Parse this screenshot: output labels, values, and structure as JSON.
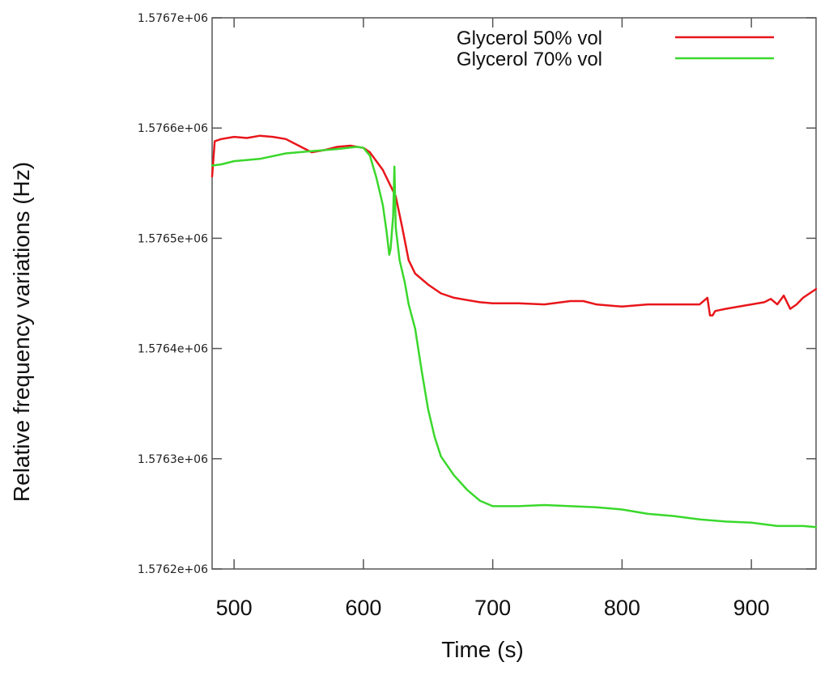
{
  "chart_data": {
    "type": "line",
    "title": "",
    "xlabel": "Time (s)",
    "ylabel": "Relative frequency variations (Hz)",
    "xlim": [
      483,
      950
    ],
    "ylim": [
      1576200,
      1576700
    ],
    "xticks": [
      500,
      600,
      700,
      800,
      900
    ],
    "xtick_labels": [
      "500",
      "600",
      "700",
      "800",
      "900"
    ],
    "yticks": [
      1576200,
      1576300,
      1576400,
      1576500,
      1576600,
      1576700
    ],
    "ytick_labels": [
      "1.5762e+06",
      "1.5763e+06",
      "1.5764e+06",
      "1.5765e+06",
      "1.5766e+06",
      "1.5767e+06"
    ],
    "grid": false,
    "legend": "top-right",
    "series": [
      {
        "name": "Glycerol 50% vol",
        "color": "#e8161b",
        "x": [
          483,
          485,
          490,
          500,
          510,
          520,
          530,
          540,
          550,
          560,
          570,
          580,
          590,
          600,
          605,
          610,
          615,
          620,
          625,
          630,
          635,
          640,
          650,
          660,
          670,
          680,
          690,
          700,
          720,
          740,
          760,
          770,
          780,
          800,
          820,
          840,
          860,
          866,
          868,
          870,
          872,
          880,
          900,
          910,
          915,
          920,
          925,
          930,
          935,
          940,
          950
        ],
        "y": [
          1576556,
          1576588,
          1576590,
          1576592,
          1576591,
          1576593,
          1576592,
          1576590,
          1576584,
          1576578,
          1576580,
          1576583,
          1576584,
          1576582,
          1576578,
          1576570,
          1576562,
          1576550,
          1576538,
          1576510,
          1576480,
          1576468,
          1576458,
          1576450,
          1576446,
          1576444,
          1576442,
          1576441,
          1576441,
          1576440,
          1576443,
          1576443,
          1576440,
          1576438,
          1576440,
          1576440,
          1576440,
          1576446,
          1576430,
          1576430,
          1576434,
          1576436,
          1576440,
          1576442,
          1576445,
          1576440,
          1576448,
          1576436,
          1576440,
          1576446,
          1576454
        ]
      },
      {
        "name": "Glycerol 70% vol",
        "color": "#3ad82c",
        "x": [
          483,
          490,
          500,
          520,
          540,
          560,
          580,
          595,
          600,
          605,
          610,
          615,
          618,
          620,
          621,
          623,
          624,
          625,
          628,
          632,
          635,
          640,
          645,
          650,
          655,
          660,
          670,
          680,
          690,
          700,
          720,
          740,
          760,
          780,
          800,
          820,
          840,
          860,
          880,
          900,
          920,
          940,
          950
        ],
        "y": [
          1576566,
          1576567,
          1576570,
          1576572,
          1576577,
          1576579,
          1576581,
          1576583,
          1576582,
          1576575,
          1576555,
          1576530,
          1576505,
          1576485,
          1576490,
          1576520,
          1576565,
          1576510,
          1576480,
          1576460,
          1576440,
          1576418,
          1576380,
          1576345,
          1576320,
          1576302,
          1576285,
          1576272,
          1576262,
          1576257,
          1576257,
          1576258,
          1576257,
          1576256,
          1576254,
          1576250,
          1576248,
          1576245,
          1576243,
          1576242,
          1576239,
          1576239,
          1576238
        ]
      }
    ]
  }
}
